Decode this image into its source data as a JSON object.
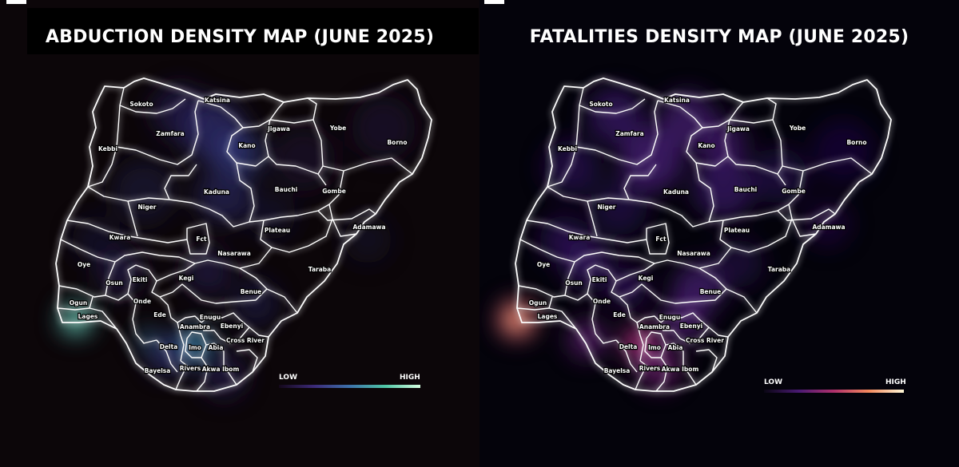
{
  "maps": [
    {
      "title": "ABDUCTION DENSITY MAP (JUNE 2025)",
      "legend": {
        "low": "LOW",
        "high": "HIGH",
        "colors": [
          "#14081a",
          "#3c2a78",
          "#3d71ab",
          "#4fc6a6",
          "#d6ffe0"
        ]
      },
      "background": "#0c0609"
    },
    {
      "title": "FATALITIES DENSITY MAP (JUNE 2025)",
      "legend": {
        "low": "LOW",
        "high": "HIGH",
        "colors": [
          "#0a0614",
          "#4a1a74",
          "#b0306c",
          "#f58a5e",
          "#fff8d8"
        ]
      },
      "background": "#04030b"
    }
  ],
  "states": [
    {
      "id": "sokoto",
      "label": "Sokoto"
    },
    {
      "id": "katsina",
      "label": "Katsina"
    },
    {
      "id": "jigawa",
      "label": "Jigawa"
    },
    {
      "id": "yobe",
      "label": "Yobe"
    },
    {
      "id": "zamfara",
      "label": "Zamfara"
    },
    {
      "id": "kebbi",
      "label": "Kebbi"
    },
    {
      "id": "kano",
      "label": "Kano"
    },
    {
      "id": "borno",
      "label": "Borno"
    },
    {
      "id": "kaduna",
      "label": "Kaduna"
    },
    {
      "id": "bauchi",
      "label": "Bauchi"
    },
    {
      "id": "gombe",
      "label": "Gombe"
    },
    {
      "id": "niger",
      "label": "Niger"
    },
    {
      "id": "fct",
      "label": "Fct"
    },
    {
      "id": "plateau",
      "label": "Plateau"
    },
    {
      "id": "adamawa",
      "label": "Adamawa"
    },
    {
      "id": "kwara",
      "label": "Kwara"
    },
    {
      "id": "nasarawa",
      "label": "Nasarawa"
    },
    {
      "id": "oyo",
      "label": "Oye"
    },
    {
      "id": "taraba",
      "label": "Taraba"
    },
    {
      "id": "osun",
      "label": "Osun"
    },
    {
      "id": "ekiti",
      "label": "Ekiti"
    },
    {
      "id": "kogi",
      "label": "Kegi"
    },
    {
      "id": "benue",
      "label": "Benue"
    },
    {
      "id": "ondo",
      "label": "Onde"
    },
    {
      "id": "ogun",
      "label": "Ogun"
    },
    {
      "id": "lagos",
      "label": "Lages"
    },
    {
      "id": "edo",
      "label": "Ede"
    },
    {
      "id": "enugu",
      "label": "Enugu"
    },
    {
      "id": "anambra",
      "label": "Anambra"
    },
    {
      "id": "ebonyi",
      "label": "Ebenyi"
    },
    {
      "id": "delta",
      "label": "Delta"
    },
    {
      "id": "imo",
      "label": "Imo"
    },
    {
      "id": "abia",
      "label": "Abia"
    },
    {
      "id": "cross-river",
      "label": "Cross River"
    },
    {
      "id": "bayelsa",
      "label": "Bayelsa"
    },
    {
      "id": "rivers",
      "label": "Rivers"
    },
    {
      "id": "akwa-ibom",
      "label": "Akwa Ibom"
    }
  ]
}
